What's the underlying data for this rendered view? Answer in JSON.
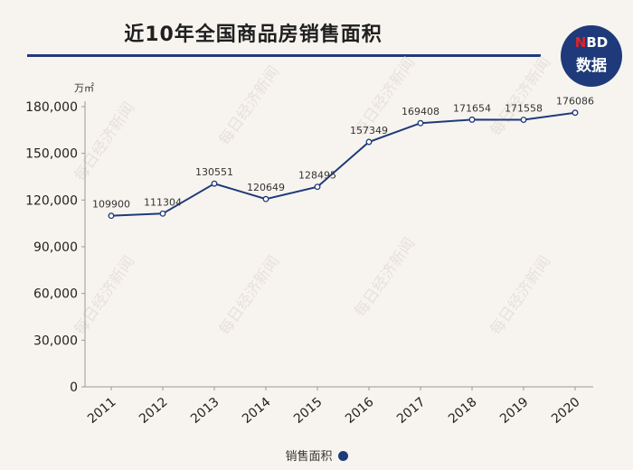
{
  "title": "近10年全国商品房销售面积",
  "logo": {
    "line1_accent": "N",
    "line1_rest": "BD",
    "line2": "数据"
  },
  "watermark": "每日经济新闻",
  "colors": {
    "line": "#1e3a7b",
    "title_rule": "#1e3a7b",
    "logo_bg": "#1e3a7b",
    "logo_accent": "#e02323"
  },
  "chart_data": {
    "type": "line",
    "title": "近10年全国商品房销售面积",
    "unit": "万㎡",
    "xlabel": "",
    "ylabel": "万㎡",
    "categories": [
      "2011",
      "2012",
      "2013",
      "2014",
      "2015",
      "2016",
      "2017",
      "2018",
      "2019",
      "2020"
    ],
    "series": [
      {
        "name": "销售面积",
        "values": [
          109900,
          111304,
          130551,
          120649,
          128495,
          157349,
          169408,
          171654,
          171558,
          176086
        ]
      }
    ],
    "ylim": [
      0,
      180000
    ],
    "yticks": [
      0,
      30000,
      60000,
      90000,
      120000,
      150000,
      180000
    ],
    "ytick_labels": [
      "0",
      "30,000",
      "60,000",
      "90,000",
      "120,000",
      "150,000",
      "180,000"
    ],
    "grid": false,
    "legend": "bottom-center"
  }
}
